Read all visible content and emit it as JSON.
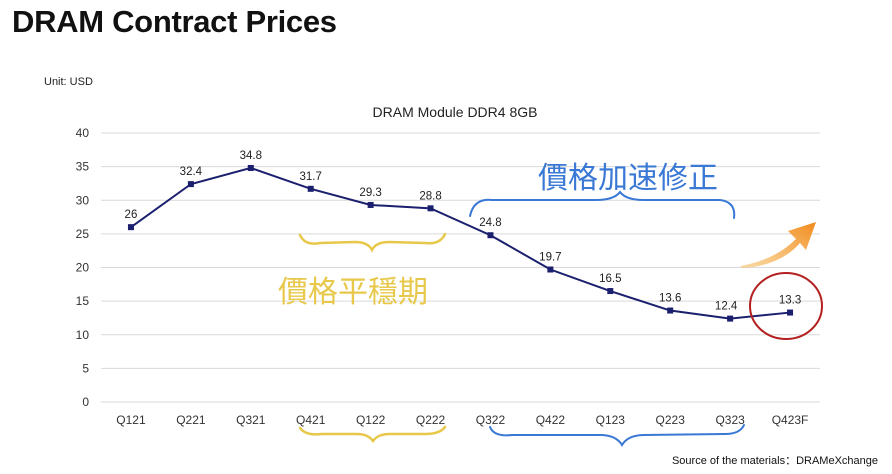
{
  "page": {
    "title": "DRAM Contract Prices",
    "unit": "Unit: USD",
    "source": "Source of the materials：DRAMeXchange"
  },
  "chart_data": {
    "type": "line",
    "title": "DRAM Module DDR4 8GB",
    "categories": [
      "Q121",
      "Q221",
      "Q321",
      "Q421",
      "Q122",
      "Q222",
      "Q322",
      "Q422",
      "Q123",
      "Q223",
      "Q323",
      "Q423F"
    ],
    "series": [
      {
        "name": "DRAM Module DDR4 8GB",
        "values": [
          26,
          32.4,
          34.8,
          31.7,
          29.3,
          28.8,
          24.8,
          19.7,
          16.5,
          13.6,
          12.4,
          13.3
        ]
      }
    ],
    "ylim": [
      0,
      40
    ],
    "yticks": [
      0,
      5,
      10,
      15,
      20,
      25,
      30,
      35,
      40
    ],
    "xlabel": "",
    "ylabel": "",
    "grid": true,
    "annotations": {
      "stable_period": "價格平穩期",
      "accelerated_correction": "價格加速修正"
    }
  },
  "colors": {
    "line": "#1a1f6e",
    "grid": "#d9d9d9",
    "yellow_note": "#e8c84a",
    "blue_note": "#3a78d6",
    "circle": "#b3201f",
    "arrow": "#f28a1c"
  }
}
